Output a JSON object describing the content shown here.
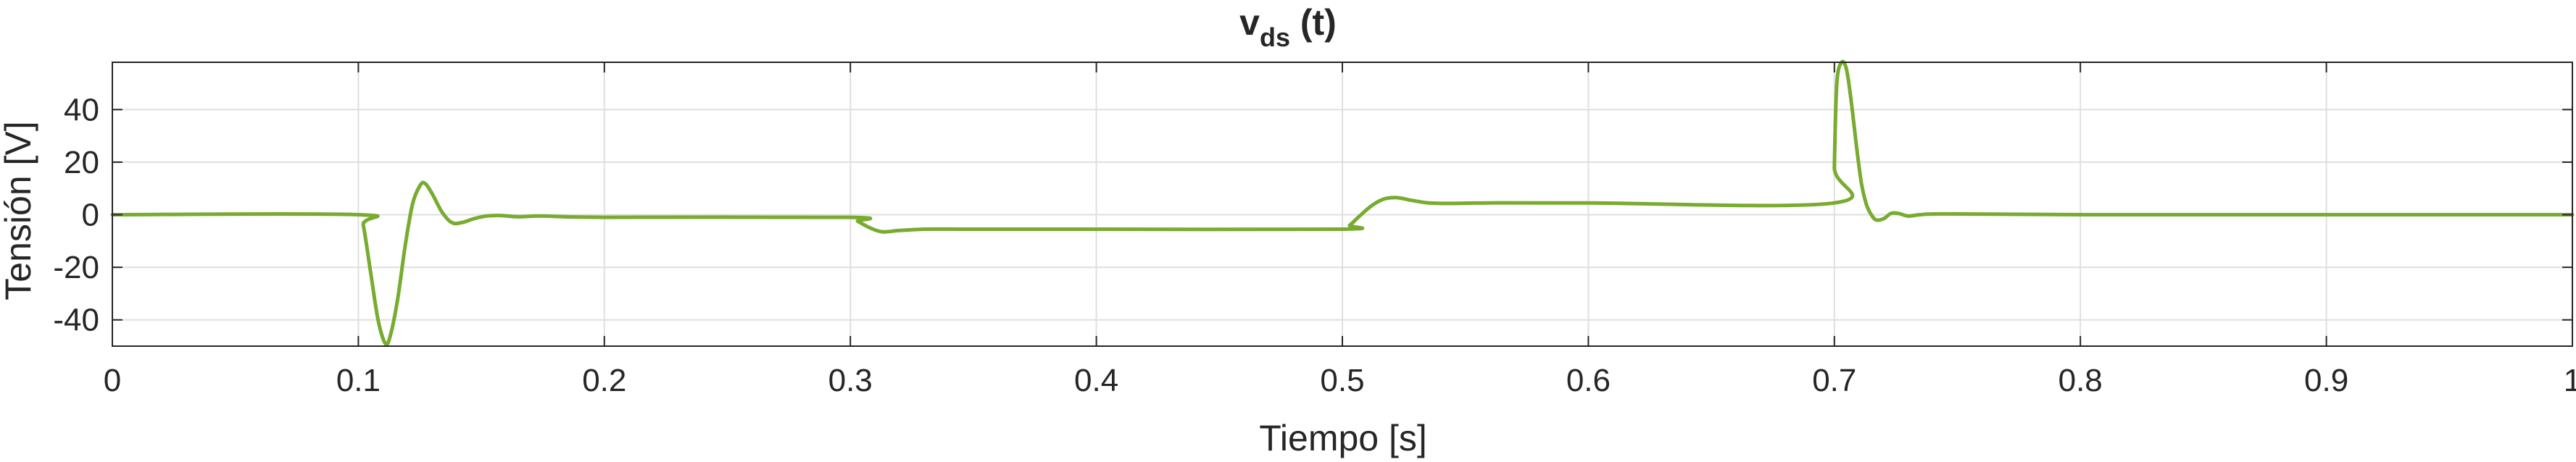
{
  "chart_data": {
    "type": "line",
    "title": {
      "main": "v",
      "subscript": "ds",
      "suffix": " (t)"
    },
    "xlabel": "Tiempo [s]",
    "ylabel": "Tensión [V]",
    "xlim": [
      0,
      1
    ],
    "ylim": [
      -50,
      58
    ],
    "x_ticks": [
      0,
      0.1,
      0.2,
      0.3,
      0.4,
      0.5,
      0.6,
      0.7,
      0.8,
      0.9,
      1
    ],
    "x_tick_labels": [
      "0",
      "0.1",
      "0.2",
      "0.3",
      "0.4",
      "0.5",
      "0.6",
      "0.7",
      "0.8",
      "0.9",
      "1"
    ],
    "y_ticks": [
      -40,
      -20,
      0,
      20,
      40
    ],
    "y_tick_labels": [
      "-40",
      "-20",
      "0",
      "20",
      "40"
    ],
    "grid": true,
    "line_color": "#77AC30",
    "series": [
      {
        "x": [
          0,
          0.1,
          0.102,
          0.105,
          0.108,
          0.111,
          0.113,
          0.116,
          0.119,
          0.122,
          0.125,
          0.127,
          0.13,
          0.134,
          0.138,
          0.142,
          0.147,
          0.152,
          0.158,
          0.165,
          0.175,
          0.2,
          0.3,
          0.303,
          0.308,
          0.313,
          0.32,
          0.33,
          0.345,
          0.36,
          0.4,
          0.5,
          0.503,
          0.507,
          0.512,
          0.517,
          0.522,
          0.528,
          0.535,
          0.545,
          0.56,
          0.6,
          0.7,
          0.7,
          0.701,
          0.703,
          0.705,
          0.707,
          0.709,
          0.711,
          0.713,
          0.715,
          0.717,
          0.72,
          0.723,
          0.726,
          0.73,
          0.735,
          0.745,
          0.8,
          0.9,
          1
        ],
        "y": [
          0,
          0,
          -4,
          -22,
          -40,
          -49,
          -46,
          -32,
          -12,
          4,
          11,
          12,
          8,
          1,
          -3,
          -3,
          -1.5,
          -0.5,
          -0.3,
          -0.8,
          -0.5,
          -1,
          -1,
          -2.5,
          -5,
          -6.5,
          -6,
          -5.5,
          -5.5,
          -5.5,
          -5.5,
          -5.5,
          -4,
          -0.5,
          3.5,
          6,
          6.5,
          5.5,
          4.5,
          4.3,
          4.5,
          4.5,
          4.5,
          18,
          50,
          58,
          55,
          42,
          26,
          12,
          4,
          0,
          -2,
          -1.5,
          0.5,
          0.5,
          -0.5,
          0,
          0.3,
          0,
          0,
          0
        ]
      }
    ]
  }
}
